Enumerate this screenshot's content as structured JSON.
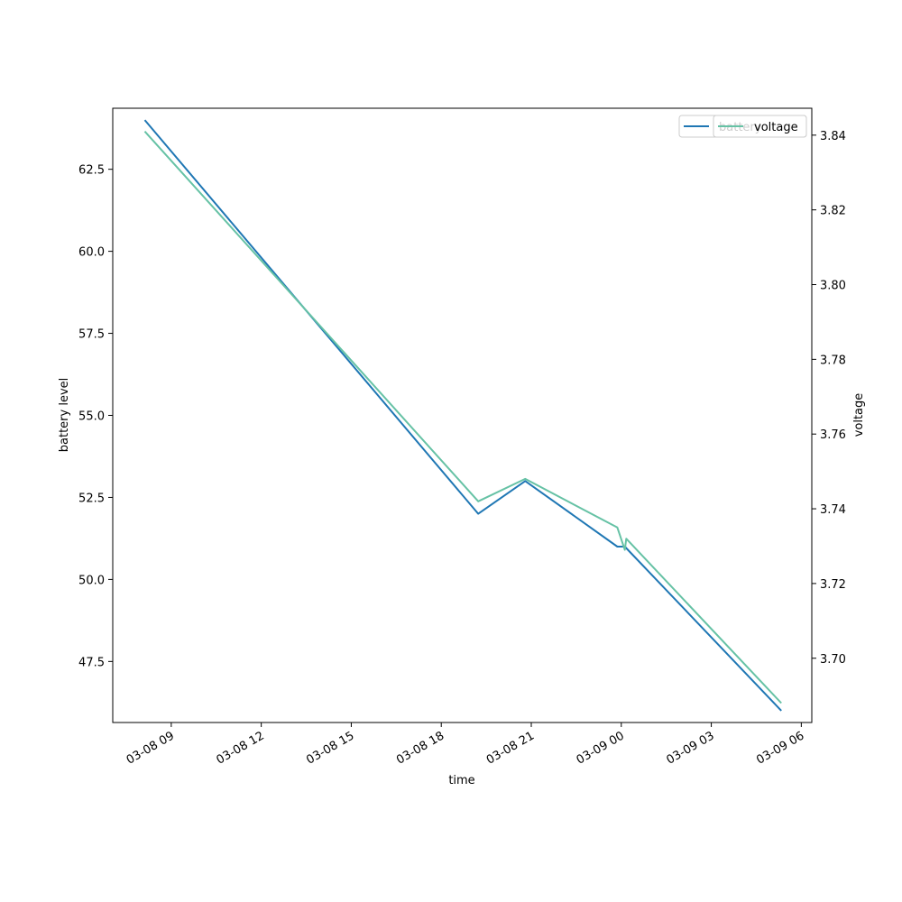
{
  "chart_data": {
    "type": "line",
    "xlabel": "time",
    "ylabel_left": "battery level",
    "ylabel_right": "voltage",
    "grid": false,
    "legend_placement": "top-right",
    "x_tick_labels": [
      "03-08 09",
      "03-08 12",
      "03-08 15",
      "03-08 18",
      "03-08 21",
      "03-09 00",
      "03-09 03",
      "03-09 06"
    ],
    "x_ticks": [
      "2024-03-08T09:00",
      "2024-03-08T12:00",
      "2024-03-08T15:00",
      "2024-03-08T18:00",
      "2024-03-08T21:00",
      "2024-03-09T00:00",
      "2024-03-09T03:00",
      "2024-03-09T06:00"
    ],
    "xlim": [
      "2024-03-08T07:03",
      "2024-03-09T06:21"
    ],
    "y_left_ticks": [
      "47.5",
      "50.0",
      "52.5",
      "55.0",
      "57.5",
      "60.0",
      "62.5"
    ],
    "y_left_lim": [
      45.64,
      64.36
    ],
    "y_right_ticks": [
      "3.70",
      "3.72",
      "3.74",
      "3.76",
      "3.78",
      "3.80",
      "3.82",
      "3.84"
    ],
    "y_right_lim": [
      3.6828,
      3.8472
    ],
    "series": [
      {
        "name": "battery",
        "axis": "left",
        "color": "#1f77b4",
        "x": [
          "2024-03-08T08:07",
          "2024-03-08T19:14",
          "2024-03-08T20:48",
          "2024-03-08T23:52",
          "2024-03-09T00:07",
          "2024-03-09T05:20"
        ],
        "values": [
          64,
          52,
          53,
          51,
          51,
          46
        ]
      },
      {
        "name": "voltage",
        "axis": "right",
        "color": "#66c2a5",
        "x": [
          "2024-03-08T08:07",
          "2024-03-08T19:14",
          "2024-03-08T20:48",
          "2024-03-08T23:52",
          "2024-03-09T00:07",
          "2024-03-09T00:10",
          "2024-03-09T05:20"
        ],
        "values": [
          3.841,
          3.742,
          3.748,
          3.735,
          3.729,
          3.732,
          3.688
        ]
      }
    ],
    "legends": [
      {
        "position": "top-right",
        "entries": [
          "battery"
        ]
      },
      {
        "position": "top-right",
        "entries": [
          "voltage"
        ]
      }
    ]
  }
}
